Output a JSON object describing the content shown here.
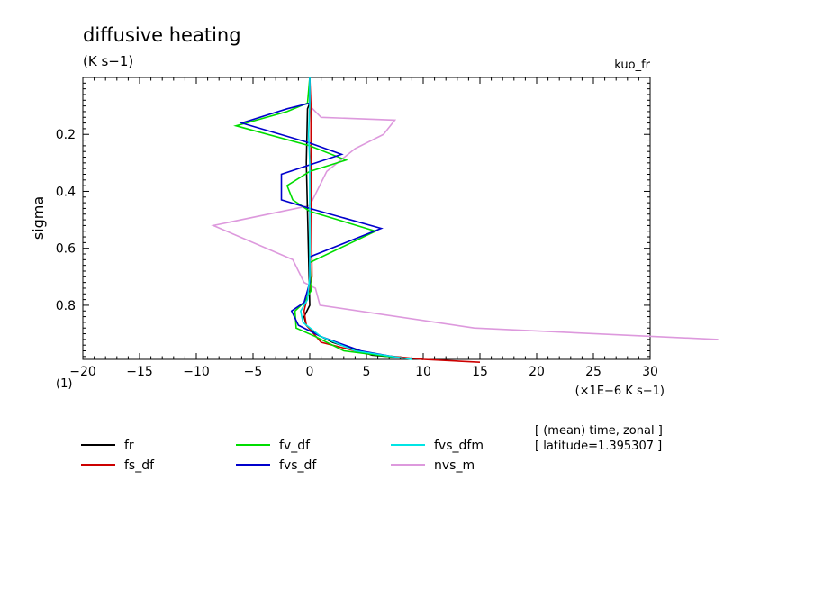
{
  "chart_data": {
    "type": "line",
    "title": "diffusive heating",
    "units": "(K s−1)",
    "experiment": "kuo_fr",
    "ylabel": "sigma",
    "xlabel": "(×1E−6 K s−1)",
    "corner_label": "(1)",
    "xlim": [
      -20,
      30
    ],
    "ylim": [
      0.0,
      0.99
    ],
    "y_inverted": true,
    "x_ticks": [
      -20,
      -15,
      -10,
      -5,
      0,
      5,
      10,
      15,
      20,
      25,
      30
    ],
    "x_tick_labels": [
      "−20",
      "−15",
      "−10",
      "−5",
      "0",
      "5",
      "10",
      "15",
      "20",
      "25",
      "30"
    ],
    "y_ticks": [
      0.2,
      0.4,
      0.6,
      0.8
    ],
    "y_tick_labels": [
      "0.2",
      "0.4",
      "0.6",
      "0.8"
    ],
    "info_lines": [
      "[ (mean) time, zonal ]",
      "[ latitude=1.395307 ]"
    ],
    "legend_placement": "bottom",
    "series": [
      {
        "name": "fr",
        "color": "#000000",
        "points": [
          [
            0,
            0
          ],
          [
            0,
            0.09
          ],
          [
            -0.2,
            0.11
          ],
          [
            -0.3,
            0.3
          ],
          [
            0,
            0.8
          ],
          [
            -0.5,
            0.84
          ],
          [
            -0.3,
            0.87
          ],
          [
            0.5,
            0.9
          ],
          [
            2,
            0.93
          ],
          [
            5.5,
            0.975
          ],
          [
            10,
            0.99
          ]
        ]
      },
      {
        "name": "fs_df",
        "color": "#cc0000",
        "points": [
          [
            0,
            0
          ],
          [
            0.1,
            0.1
          ],
          [
            0.1,
            0.3
          ],
          [
            0.2,
            0.7
          ],
          [
            -0.5,
            0.82
          ],
          [
            -0.3,
            0.87
          ],
          [
            1,
            0.93
          ],
          [
            5,
            0.97
          ],
          [
            10,
            0.99
          ],
          [
            15,
            1.0
          ]
        ]
      },
      {
        "name": "fv_df",
        "color": "#00dd00",
        "points": [
          [
            0,
            0
          ],
          [
            -0.2,
            0.09
          ],
          [
            -2,
            0.12
          ],
          [
            -6.5,
            0.17
          ],
          [
            0,
            0.24
          ],
          [
            3.2,
            0.29
          ],
          [
            0,
            0.33
          ],
          [
            -2,
            0.38
          ],
          [
            -1.5,
            0.43
          ],
          [
            0,
            0.47
          ],
          [
            5.8,
            0.54
          ],
          [
            0,
            0.65
          ],
          [
            0.1,
            0.75
          ],
          [
            -0.5,
            0.79
          ],
          [
            -1.3,
            0.82
          ],
          [
            -1.2,
            0.88
          ],
          [
            0.5,
            0.91
          ],
          [
            3,
            0.96
          ],
          [
            8,
            0.985
          ]
        ]
      },
      {
        "name": "fvs_df",
        "color": "#0000cc",
        "points": [
          [
            0,
            0
          ],
          [
            0,
            0.09
          ],
          [
            -2,
            0.11
          ],
          [
            -6,
            0.16
          ],
          [
            0,
            0.23
          ],
          [
            2.8,
            0.27
          ],
          [
            -2.5,
            0.34
          ],
          [
            -2.5,
            0.43
          ],
          [
            0,
            0.46
          ],
          [
            6.3,
            0.53
          ],
          [
            0,
            0.63
          ],
          [
            0,
            0.72
          ],
          [
            -0.5,
            0.79
          ],
          [
            -1.6,
            0.82
          ],
          [
            -1,
            0.87
          ],
          [
            1,
            0.91
          ],
          [
            4.5,
            0.96
          ],
          [
            8,
            0.985
          ]
        ]
      },
      {
        "name": "fvs_dfm",
        "color": "#00e5e5",
        "points": [
          [
            0,
            0
          ],
          [
            0,
            0.1
          ],
          [
            -0.1,
            0.2
          ],
          [
            0,
            0.3
          ],
          [
            0,
            0.4
          ],
          [
            0,
            0.6
          ],
          [
            0,
            0.7
          ],
          [
            -0.2,
            0.78
          ],
          [
            -0.8,
            0.82
          ],
          [
            -0.6,
            0.86
          ],
          [
            1,
            0.91
          ],
          [
            4,
            0.96
          ],
          [
            9,
            0.99
          ]
        ]
      },
      {
        "name": "nvs_m",
        "color": "#dd99dd",
        "points": [
          [
            0,
            0
          ],
          [
            0,
            0.1
          ],
          [
            1,
            0.14
          ],
          [
            7.5,
            0.15
          ],
          [
            6.5,
            0.2
          ],
          [
            4,
            0.25
          ],
          [
            1.5,
            0.33
          ],
          [
            0,
            0.45
          ],
          [
            -8.5,
            0.52
          ],
          [
            -1.5,
            0.64
          ],
          [
            -0.5,
            0.72
          ],
          [
            0.5,
            0.74
          ],
          [
            0.9,
            0.8
          ],
          [
            14.5,
            0.88
          ],
          [
            36,
            0.92
          ]
        ]
      }
    ]
  }
}
